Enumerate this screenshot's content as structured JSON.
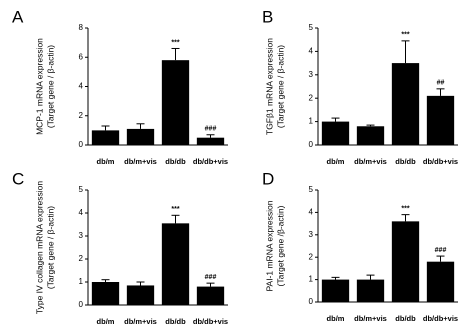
{
  "chart_data": [
    {
      "type": "bar",
      "panel": "A",
      "ylabel": [
        "MCP-1 mRNA expression",
        "(Target gene / β-actin)"
      ],
      "categories": [
        "db/m",
        "db/m+vis",
        "db/db",
        "db/db+vis"
      ],
      "values": [
        1.0,
        1.1,
        5.8,
        0.5
      ],
      "errors": [
        0.3,
        0.35,
        0.8,
        0.2
      ],
      "annotations": [
        null,
        null,
        "***",
        "###"
      ],
      "color": "#000000",
      "ylim": [
        0,
        8
      ],
      "yticks": [
        0,
        2,
        4,
        6,
        8
      ]
    },
    {
      "type": "bar",
      "panel": "B",
      "ylabel": [
        "TGFβ1 mRNA expression",
        "(Target gene / β-actin)"
      ],
      "categories": [
        "db/m",
        "db/m+vis",
        "db/db",
        "db/db+vis"
      ],
      "values": [
        1.0,
        0.8,
        3.5,
        2.1
      ],
      "errors": [
        0.15,
        0.05,
        0.95,
        0.3
      ],
      "annotations": [
        null,
        null,
        "***",
        "##"
      ],
      "color": "#000000",
      "ylim": [
        0,
        5
      ],
      "yticks": [
        0,
        1,
        2,
        3,
        4,
        5
      ]
    },
    {
      "type": "bar",
      "panel": "C",
      "ylabel": [
        "Type IV collagen mRNA expression",
        "(Target gene / β-actin)"
      ],
      "categories": [
        "db/m",
        "db/m+vis",
        "db/db",
        "db/db+vis"
      ],
      "values": [
        1.0,
        0.85,
        3.55,
        0.8
      ],
      "errors": [
        0.1,
        0.15,
        0.35,
        0.15
      ],
      "annotations": [
        null,
        null,
        "***",
        "###"
      ],
      "color": "#000000",
      "ylim": [
        0,
        5
      ],
      "yticks": [
        0,
        1,
        2,
        3,
        4,
        5
      ]
    },
    {
      "type": "bar",
      "panel": "D",
      "ylabel": [
        "PAI-1 mRNA expression",
        "(Target gene /β-actin)"
      ],
      "categories": [
        "db/m",
        "db/m+vis",
        "db/db",
        "db/db+vis"
      ],
      "values": [
        1.0,
        1.0,
        3.6,
        1.8
      ],
      "errors": [
        0.1,
        0.2,
        0.3,
        0.25
      ],
      "annotations": [
        null,
        null,
        "***",
        "###"
      ],
      "color": "#000000",
      "ylim": [
        0,
        5
      ],
      "yticks": [
        0,
        1,
        2,
        3,
        4,
        5
      ]
    }
  ]
}
